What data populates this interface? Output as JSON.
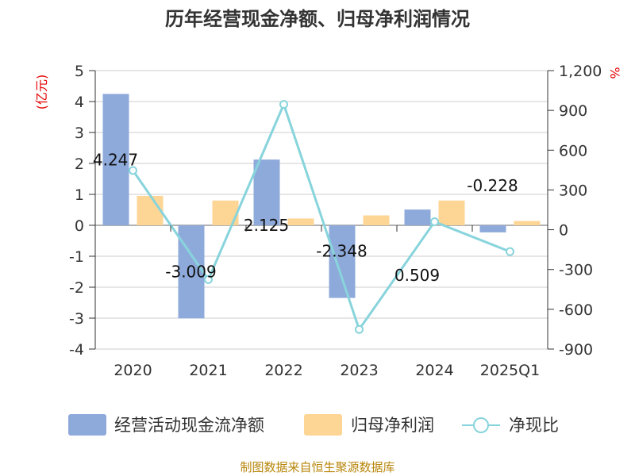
{
  "chart_data": {
    "type": "bar+line",
    "title": "历年经营现金净额、归母净利润情况",
    "categories": [
      "2020",
      "2021",
      "2022",
      "2023",
      "2024",
      "2025Q1"
    ],
    "left_axis": {
      "unit_label": "(亿元)",
      "ylim": [
        -4,
        5
      ],
      "ticks": [
        "-4",
        "-3",
        "-2",
        "-1",
        "0",
        "1",
        "2",
        "3",
        "4",
        "5"
      ]
    },
    "right_axis": {
      "unit_label": "%",
      "ylim": [
        -900,
        1200
      ],
      "ticks": [
        "-900",
        "-600",
        "-300",
        "0",
        "300",
        "600",
        "900",
        "1,200"
      ]
    },
    "series": [
      {
        "name": "经营活动现金流净额",
        "type": "bar",
        "axis": "left",
        "color": "#8eaadb",
        "values": [
          4.247,
          -3.009,
          2.125,
          -2.348,
          0.509,
          -0.228
        ],
        "labels": [
          "4.247",
          "-3.009",
          "2.125",
          "-2.348",
          "0.509",
          "-0.228"
        ]
      },
      {
        "name": "归母净利润",
        "type": "bar",
        "axis": "left",
        "color": "#fdd594",
        "values": [
          0.95,
          0.8,
          0.22,
          0.32,
          0.8,
          0.14
        ]
      },
      {
        "name": "净现比",
        "type": "line",
        "axis": "right",
        "color": "#88d4dc",
        "values": [
          447,
          -376,
          945,
          -752,
          60,
          -165
        ]
      }
    ],
    "grid": true,
    "legend_position": "bottom"
  },
  "footer": {
    "source": "制图数据来自恒生聚源数据库"
  }
}
